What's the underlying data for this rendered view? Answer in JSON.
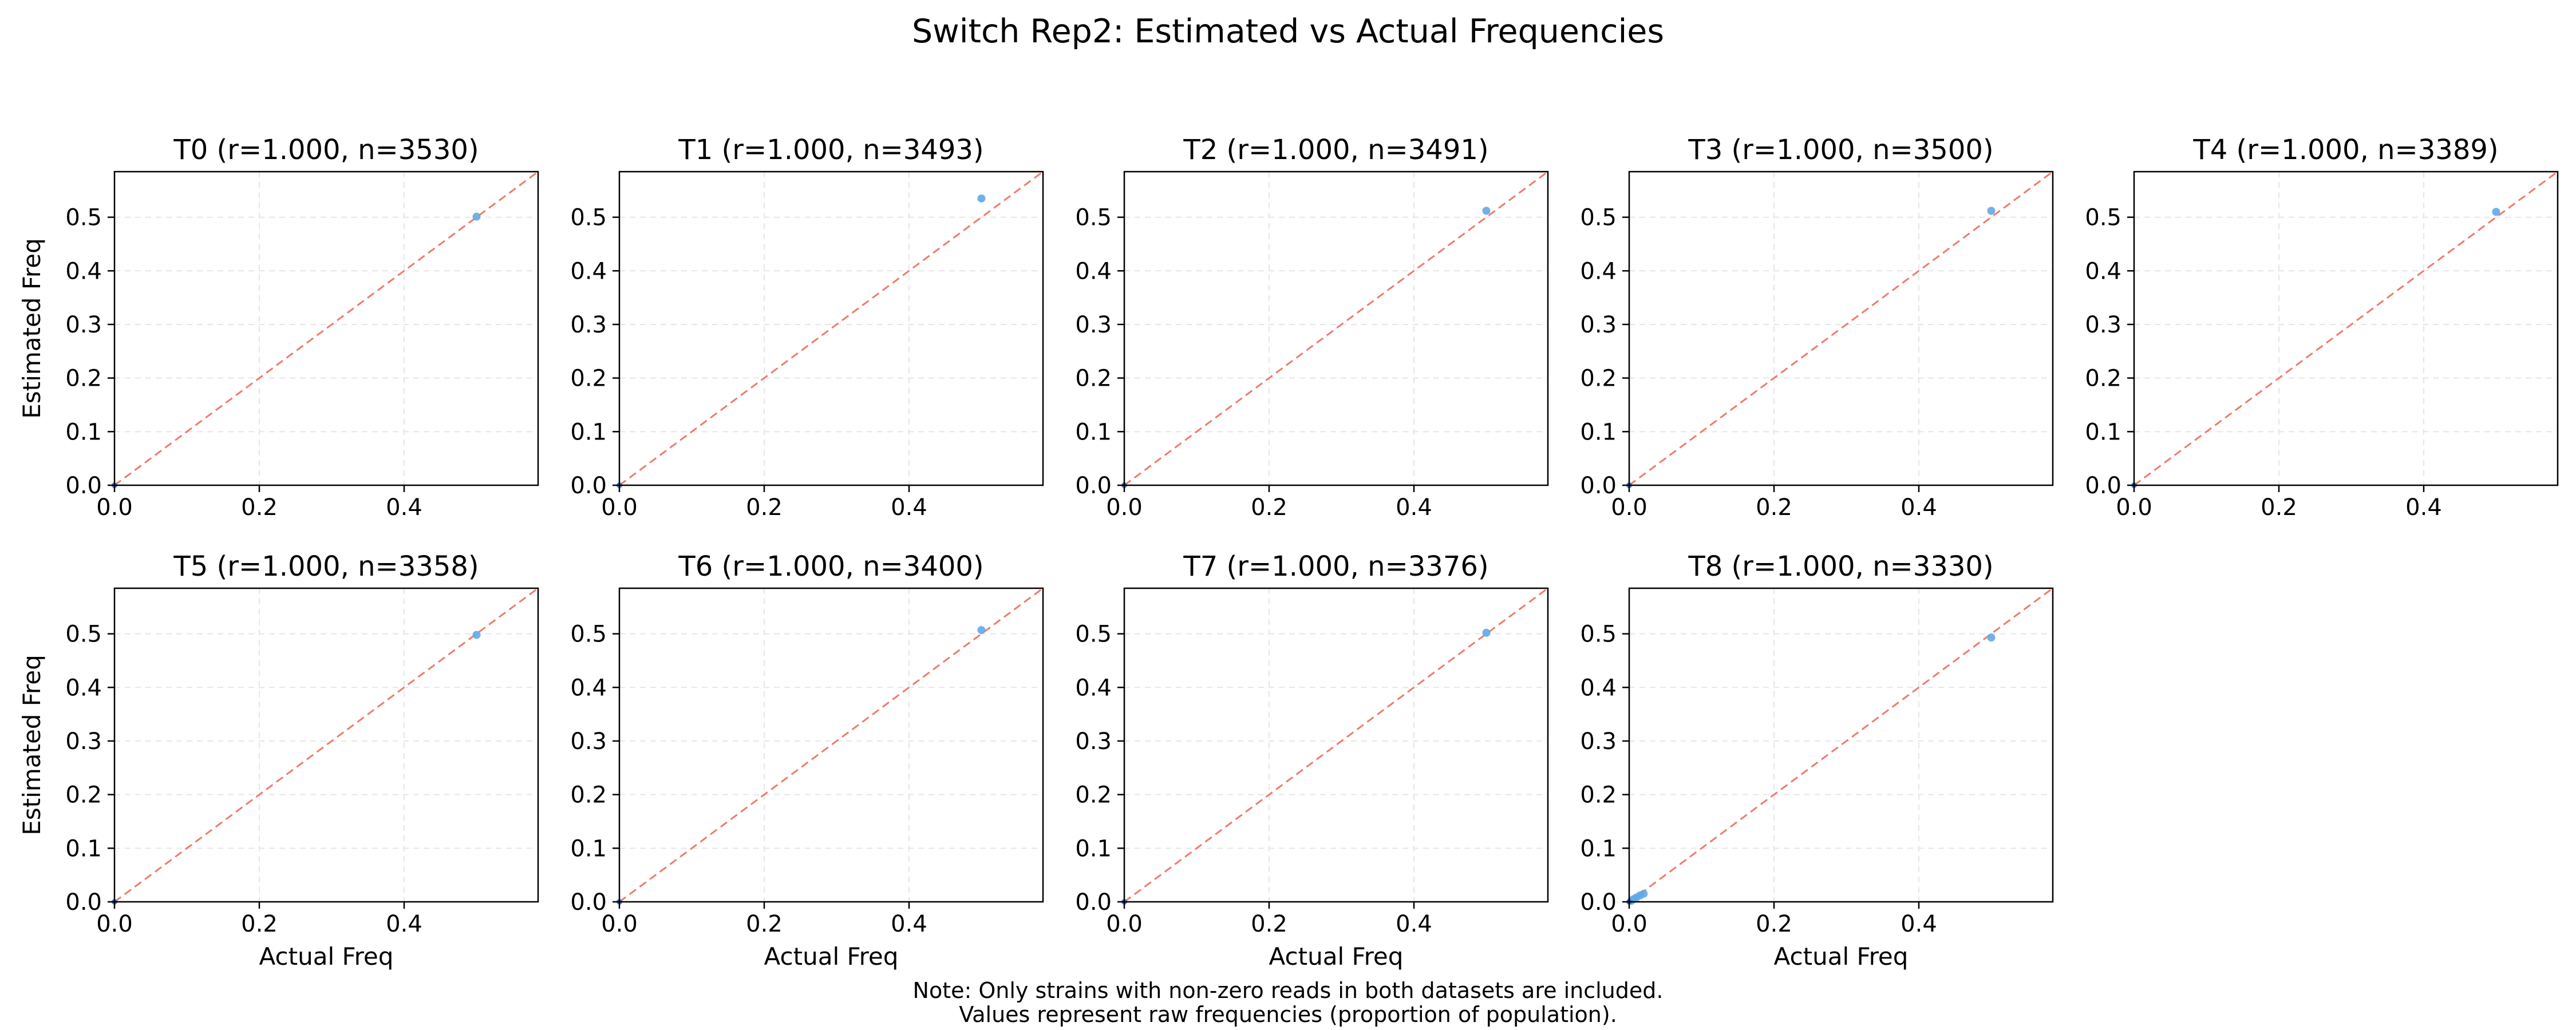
{
  "figure": {
    "title": "Switch Rep2: Estimated vs Actual Frequencies",
    "note_line1": "Note: Only strains with non-zero reads in both datasets are included.",
    "note_line2": "Values represent raw frequencies (proportion of population)."
  },
  "colors": {
    "point": "#5fa8e6",
    "point_dark": "#3b6fc4",
    "diagonal": "#f07a6c",
    "grid": "#e6e6e6",
    "axis": "#000000"
  },
  "chart_data": [
    {
      "type": "scatter",
      "title": "T0 (r=1.000, n=3530)",
      "xlabel": "",
      "ylabel": "Estimated Freq",
      "xlim": [
        0,
        0.585
      ],
      "ylim": [
        0,
        0.585
      ],
      "xticks": [
        "0.0",
        "0.2",
        "0.4"
      ],
      "yticks": [
        "0.0",
        "0.1",
        "0.2",
        "0.3",
        "0.4",
        "0.5"
      ],
      "grid": true,
      "diagonal": true,
      "points": [
        {
          "x": 0.5,
          "y": 0.501
        },
        {
          "x": 0.0,
          "y": 0.0
        }
      ]
    },
    {
      "type": "scatter",
      "title": "T1 (r=1.000, n=3493)",
      "xlabel": "",
      "ylabel": "",
      "xlim": [
        0,
        0.585
      ],
      "ylim": [
        0,
        0.585
      ],
      "xticks": [
        "0.0",
        "0.2",
        "0.4"
      ],
      "yticks": [
        "0.0",
        "0.1",
        "0.2",
        "0.3",
        "0.4",
        "0.5"
      ],
      "grid": true,
      "diagonal": true,
      "points": [
        {
          "x": 0.5,
          "y": 0.535
        },
        {
          "x": 0.0,
          "y": 0.0
        }
      ]
    },
    {
      "type": "scatter",
      "title": "T2 (r=1.000, n=3491)",
      "xlabel": "",
      "ylabel": "",
      "xlim": [
        0,
        0.585
      ],
      "ylim": [
        0,
        0.585
      ],
      "xticks": [
        "0.0",
        "0.2",
        "0.4"
      ],
      "yticks": [
        "0.0",
        "0.1",
        "0.2",
        "0.3",
        "0.4",
        "0.5"
      ],
      "grid": true,
      "diagonal": true,
      "points": [
        {
          "x": 0.5,
          "y": 0.512
        },
        {
          "x": 0.0,
          "y": 0.0
        }
      ]
    },
    {
      "type": "scatter",
      "title": "T3 (r=1.000, n=3500)",
      "xlabel": "",
      "ylabel": "",
      "xlim": [
        0,
        0.585
      ],
      "ylim": [
        0,
        0.585
      ],
      "xticks": [
        "0.0",
        "0.2",
        "0.4"
      ],
      "yticks": [
        "0.0",
        "0.1",
        "0.2",
        "0.3",
        "0.4",
        "0.5"
      ],
      "grid": true,
      "diagonal": true,
      "points": [
        {
          "x": 0.5,
          "y": 0.512
        },
        {
          "x": 0.0,
          "y": 0.0
        }
      ]
    },
    {
      "type": "scatter",
      "title": "T4 (r=1.000, n=3389)",
      "xlabel": "",
      "ylabel": "",
      "xlim": [
        0,
        0.585
      ],
      "ylim": [
        0,
        0.585
      ],
      "xticks": [
        "0.0",
        "0.2",
        "0.4"
      ],
      "yticks": [
        "0.0",
        "0.1",
        "0.2",
        "0.3",
        "0.4",
        "0.5"
      ],
      "grid": true,
      "diagonal": true,
      "points": [
        {
          "x": 0.5,
          "y": 0.51
        },
        {
          "x": 0.0,
          "y": 0.0
        }
      ]
    },
    {
      "type": "scatter",
      "title": "T5 (r=1.000, n=3358)",
      "xlabel": "Actual Freq",
      "ylabel": "Estimated Freq",
      "xlim": [
        0,
        0.585
      ],
      "ylim": [
        0,
        0.585
      ],
      "xticks": [
        "0.0",
        "0.2",
        "0.4"
      ],
      "yticks": [
        "0.0",
        "0.1",
        "0.2",
        "0.3",
        "0.4",
        "0.5"
      ],
      "grid": true,
      "diagonal": true,
      "points": [
        {
          "x": 0.5,
          "y": 0.498
        },
        {
          "x": 0.0,
          "y": 0.0
        }
      ]
    },
    {
      "type": "scatter",
      "title": "T6 (r=1.000, n=3400)",
      "xlabel": "Actual Freq",
      "ylabel": "",
      "xlim": [
        0,
        0.585
      ],
      "ylim": [
        0,
        0.585
      ],
      "xticks": [
        "0.0",
        "0.2",
        "0.4"
      ],
      "yticks": [
        "0.0",
        "0.1",
        "0.2",
        "0.3",
        "0.4",
        "0.5"
      ],
      "grid": true,
      "diagonal": true,
      "points": [
        {
          "x": 0.5,
          "y": 0.507
        },
        {
          "x": 0.0,
          "y": 0.0
        }
      ]
    },
    {
      "type": "scatter",
      "title": "T7 (r=1.000, n=3376)",
      "xlabel": "Actual Freq",
      "ylabel": "",
      "xlim": [
        0,
        0.585
      ],
      "ylim": [
        0,
        0.585
      ],
      "xticks": [
        "0.0",
        "0.2",
        "0.4"
      ],
      "yticks": [
        "0.0",
        "0.1",
        "0.2",
        "0.3",
        "0.4",
        "0.5"
      ],
      "grid": true,
      "diagonal": true,
      "points": [
        {
          "x": 0.5,
          "y": 0.502
        },
        {
          "x": 0.0,
          "y": 0.0
        }
      ]
    },
    {
      "type": "scatter",
      "title": "T8 (r=1.000, n=3330)",
      "xlabel": "Actual Freq",
      "ylabel": "",
      "xlim": [
        0,
        0.585
      ],
      "ylim": [
        0,
        0.585
      ],
      "xticks": [
        "0.0",
        "0.2",
        "0.4"
      ],
      "yticks": [
        "0.0",
        "0.1",
        "0.2",
        "0.3",
        "0.4",
        "0.5"
      ],
      "grid": true,
      "diagonal": true,
      "points": [
        {
          "x": 0.5,
          "y": 0.493
        },
        {
          "x": 0.02,
          "y": 0.015
        },
        {
          "x": 0.015,
          "y": 0.012
        },
        {
          "x": 0.01,
          "y": 0.008
        },
        {
          "x": 0.006,
          "y": 0.005
        },
        {
          "x": 0.003,
          "y": 0.002
        },
        {
          "x": 0.0,
          "y": 0.0
        }
      ]
    }
  ]
}
